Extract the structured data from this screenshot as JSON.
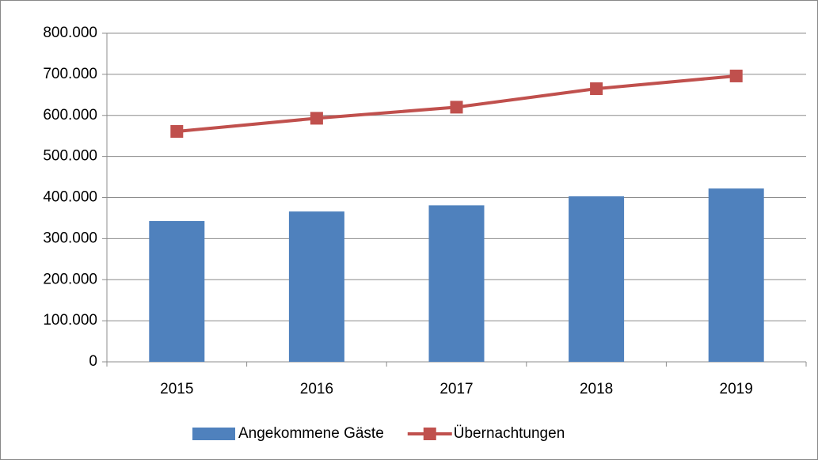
{
  "chart_data": {
    "type": "combo",
    "categories": [
      "2015",
      "2016",
      "2017",
      "2018",
      "2019"
    ],
    "series": [
      {
        "name": "Angekommene Gäste",
        "type": "bar",
        "color": "#4f81bd",
        "values": [
          343000,
          366000,
          381000,
          403000,
          422000
        ]
      },
      {
        "name": "Übernachtungen",
        "type": "line",
        "color": "#c0504d",
        "values": [
          561000,
          593000,
          620000,
          665000,
          696000
        ]
      }
    ],
    "ylim": [
      0,
      800000
    ],
    "yticks": [
      0,
      {
        "value": 100000,
        "label": "100.000"
      },
      {
        "value": 200000,
        "label": "200.000"
      },
      {
        "value": 300000,
        "label": "300.000"
      },
      {
        "value": 400000,
        "label": "400.000"
      },
      {
        "value": 500000,
        "label": "500.000"
      },
      {
        "value": 600000,
        "label": "600.000"
      },
      {
        "value": 700000,
        "label": "700.000"
      },
      {
        "value": 800000,
        "label": "800.000"
      }
    ],
    "grid": true,
    "legend": "bottom"
  }
}
